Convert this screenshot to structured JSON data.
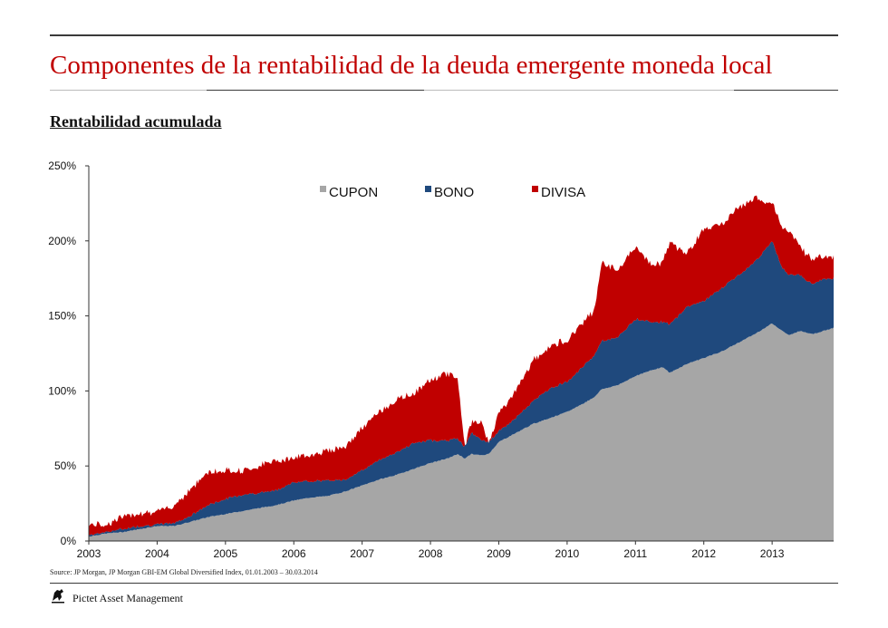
{
  "header": {
    "title": "Componentes de la rentabilidad de la deuda emergente moneda local",
    "subtitle": "Rentabilidad acumulada"
  },
  "footer": {
    "source": "Source: JP Morgan, JP Morgan GBI-EM Global Diversified Index, 01.01.2003 – 30.03.2014",
    "company": "Pictet Asset Management",
    "logo_icon": "pictet-logo-icon"
  },
  "colors": {
    "cupon": "#a6a6a6",
    "bono": "#1f497d",
    "divisa": "#c00000",
    "accent": "#c00000"
  },
  "chart_data": {
    "type": "area",
    "stacked": true,
    "title": "Rentabilidad acumulada",
    "xlabel": "",
    "ylabel": "",
    "x_ticks": [
      "2003",
      "2004",
      "2005",
      "2006",
      "2007",
      "2008",
      "2009",
      "2010",
      "2011",
      "2012",
      "2013"
    ],
    "y_ticks": [
      "0%",
      "50%",
      "100%",
      "150%",
      "200%",
      "250%"
    ],
    "xlim": [
      2003.0,
      2013.9
    ],
    "ylim": [
      0,
      250
    ],
    "legend_position": "top-center",
    "x": [
      2003.0,
      2003.25,
      2003.5,
      2003.75,
      2004.0,
      2004.25,
      2004.5,
      2004.75,
      2005.0,
      2005.25,
      2005.5,
      2005.75,
      2006.0,
      2006.25,
      2006.5,
      2006.75,
      2007.0,
      2007.25,
      2007.5,
      2007.75,
      2008.0,
      2008.25,
      2008.4,
      2008.5,
      2008.6,
      2008.75,
      2008.85,
      2009.0,
      2009.25,
      2009.5,
      2009.75,
      2010.0,
      2010.25,
      2010.4,
      2010.5,
      2010.75,
      2011.0,
      2011.25,
      2011.4,
      2011.5,
      2011.75,
      2012.0,
      2012.25,
      2012.5,
      2012.75,
      2013.0,
      2013.15,
      2013.25,
      2013.4,
      2013.5,
      2013.6,
      2013.75,
      2013.9
    ],
    "series": [
      {
        "name": "CUPON",
        "values": [
          3,
          5,
          6,
          8,
          10,
          10,
          13,
          16,
          18,
          20,
          22,
          24,
          27,
          29,
          30,
          33,
          37,
          41,
          44,
          48,
          52,
          55,
          58,
          55,
          58,
          57,
          58,
          66,
          72,
          78,
          82,
          86,
          92,
          96,
          101,
          104,
          110,
          114,
          116,
          112,
          118,
          122,
          126,
          132,
          138,
          145,
          140,
          137,
          140,
          139,
          138,
          140,
          142
        ]
      },
      {
        "name": "BONO",
        "values": [
          1,
          1,
          2,
          2,
          1,
          2,
          4,
          8,
          10,
          11,
          10,
          10,
          12,
          11,
          10,
          8,
          10,
          13,
          15,
          17,
          15,
          12,
          10,
          8,
          14,
          10,
          8,
          7,
          10,
          15,
          20,
          20,
          25,
          28,
          32,
          32,
          38,
          32,
          30,
          32,
          38,
          38,
          42,
          45,
          48,
          55,
          42,
          40,
          38,
          35,
          33,
          35,
          33
        ]
      },
      {
        "name": "DIVISA",
        "values": [
          7,
          5,
          8,
          9,
          8,
          12,
          18,
          22,
          19,
          16,
          18,
          20,
          16,
          18,
          20,
          22,
          28,
          32,
          35,
          33,
          40,
          45,
          40,
          0,
          7,
          12,
          0,
          12,
          18,
          27,
          28,
          28,
          30,
          30,
          52,
          45,
          48,
          38,
          40,
          55,
          35,
          48,
          42,
          45,
          42,
          25,
          28,
          28,
          20,
          17,
          17,
          15,
          14
        ]
      }
    ]
  }
}
